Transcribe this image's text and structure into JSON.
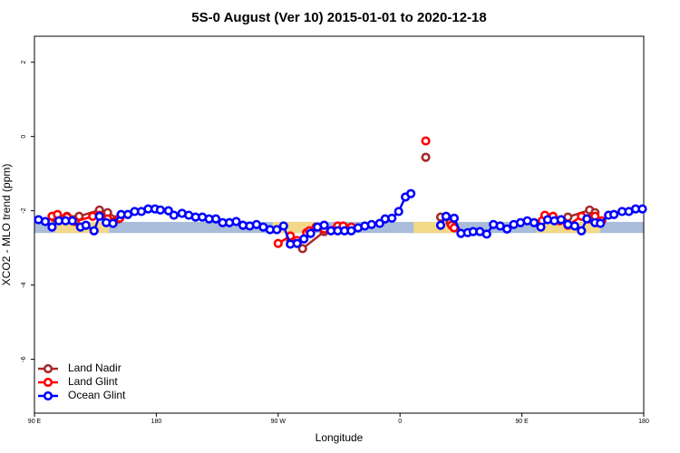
{
  "chart_data": {
    "type": "line",
    "title": "5S-0 August (Ver 10)   2015-01-01 to 2020-12-18",
    "x_label": "Longitude",
    "y_label": "XCO2 - MLO trend (ppm)",
    "xlim": [
      90,
      540
    ],
    "ylim": [
      -7.45,
      2.7
    ],
    "xticks": [
      {
        "value": 90,
        "label": "90 E"
      },
      {
        "value": 180,
        "label": "180"
      },
      {
        "value": 270,
        "label": "90 W"
      },
      {
        "value": 360,
        "label": "0"
      },
      {
        "value": 450,
        "label": "90 E"
      },
      {
        "value": 540,
        "label": "180"
      }
    ],
    "yticks": [
      2,
      0,
      -2,
      -4,
      -6
    ],
    "band": {
      "ylim": [
        -2.6,
        -2.3
      ],
      "color": "#a9bcd9"
    },
    "land_spans": {
      "color": "#f3d888",
      "ranges": [
        [
          105,
          145
        ],
        [
          266,
          296
        ],
        [
          370,
          400
        ],
        [
          461,
          508
        ]
      ]
    },
    "legend": "bottom-left",
    "series": [
      {
        "name": "Land Nadir",
        "color": "#a52a2a",
        "x": [
          105,
          114,
          123,
          138,
          144,
          152,
          200,
          279,
          288,
          304,
          350,
          379,
          385,
          390,
          397,
          440,
          467,
          484,
          500,
          504
        ],
        "values": [
          -2.2,
          -2.15,
          -2.15,
          -1.98,
          -2.05,
          -2.22,
          null,
          -2.78,
          -3.02,
          -2.56,
          null,
          -0.56,
          null,
          -2.17,
          -2.32,
          null,
          -2.2,
          -2.17,
          -1.98,
          -2.05
        ]
      },
      {
        "name": "Land Glint",
        "color": "#ff0000",
        "x": [
          103,
          107,
          114,
          120,
          133,
          138,
          144,
          153,
          200,
          270,
          279,
          284,
          291,
          293,
          298,
          304,
          314,
          318,
          324,
          350,
          379,
          390,
          398,
          400,
          440,
          465,
          467,
          473,
          478,
          484,
          494,
          500,
          504,
          509
        ],
        "values": [
          -2.15,
          -2.1,
          -2.17,
          -2.29,
          -2.15,
          -2.12,
          -2.22,
          -2.2,
          null,
          -2.88,
          -2.68,
          -2.8,
          -2.59,
          -2.54,
          -2.44,
          -2.49,
          -2.41,
          -2.41,
          -2.44,
          null,
          -0.12,
          null,
          -2.39,
          -2.46,
          null,
          -2.27,
          -2.12,
          -2.15,
          -2.27,
          -2.39,
          -2.15,
          -2.22,
          -2.15,
          -2.27
        ]
      },
      {
        "name": "Ocean Glint",
        "color": "#0000ff",
        "x": [
          93,
          98,
          103,
          108,
          113,
          118,
          124,
          128,
          134,
          138,
          143,
          148,
          154,
          159,
          164,
          169,
          174,
          179,
          183,
          189,
          193,
          199,
          204,
          209,
          214,
          219,
          224,
          229,
          234,
          239,
          244,
          249,
          254,
          259,
          264,
          269,
          274,
          279,
          284,
          289,
          294,
          299,
          304,
          309,
          314,
          319,
          324,
          329,
          334,
          339,
          345,
          349,
          354,
          359,
          364,
          368,
          380,
          390,
          394,
          400,
          405,
          410,
          414,
          419,
          424,
          429,
          434,
          439,
          444,
          449,
          454,
          459,
          464,
          469,
          474,
          479,
          484,
          489,
          494,
          498,
          504,
          508,
          514,
          518,
          524,
          529,
          534,
          539
        ],
        "values": [
          -2.24,
          -2.29,
          -2.44,
          -2.27,
          -2.27,
          -2.27,
          -2.44,
          -2.39,
          -2.54,
          -2.15,
          -2.32,
          -2.34,
          -2.1,
          -2.1,
          -2.02,
          -2.02,
          -1.95,
          -1.95,
          -1.98,
          -2.0,
          -2.12,
          -2.07,
          -2.12,
          -2.17,
          -2.17,
          -2.22,
          -2.22,
          -2.32,
          -2.32,
          -2.29,
          -2.39,
          -2.41,
          -2.37,
          -2.44,
          -2.51,
          -2.51,
          -2.41,
          -2.9,
          -2.88,
          -2.76,
          -2.61,
          -2.44,
          -2.39,
          -2.54,
          -2.54,
          -2.54,
          -2.54,
          -2.46,
          -2.41,
          -2.37,
          -2.34,
          -2.22,
          -2.2,
          -2.02,
          -1.63,
          -1.54,
          null,
          -2.39,
          -2.15,
          -2.2,
          -2.61,
          -2.59,
          -2.56,
          -2.56,
          -2.63,
          -2.37,
          -2.41,
          -2.49,
          -2.37,
          -2.32,
          -2.27,
          -2.32,
          -2.44,
          -2.24,
          -2.27,
          -2.24,
          -2.37,
          -2.41,
          -2.54,
          -2.22,
          -2.32,
          -2.34,
          -2.12,
          -2.1,
          -2.02,
          -2.02,
          -1.95,
          -1.95
        ]
      }
    ]
  }
}
